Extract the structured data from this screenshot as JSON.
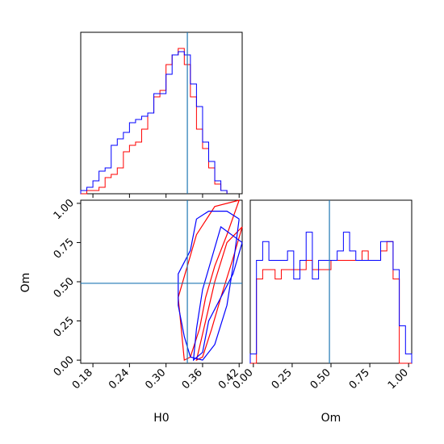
{
  "chart_data": {
    "type": "corner",
    "colors": {
      "series_a": "#0000ff",
      "series_b": "#ff0000",
      "truth": "#1f77b4"
    },
    "truth": {
      "H0": 0.335,
      "Om": 0.49
    },
    "xlabels": {
      "H0": "H0",
      "Om": "Om"
    },
    "ylabels": {
      "Om": "Om"
    },
    "ticks": {
      "H0": [
        "0.18",
        "0.24",
        "0.30",
        "0.36",
        "0.42"
      ],
      "Om_x": [
        "0.00",
        "0.25",
        "0.50",
        "0.75",
        "1.00"
      ],
      "Om_y": [
        "0.00",
        "0.25",
        "0.50",
        "0.75",
        "1.00"
      ]
    },
    "ranges": {
      "H0": [
        0.16,
        0.425
      ],
      "Om": [
        -0.02,
        1.02
      ]
    },
    "hist_H0": {
      "edges_start": 0.16,
      "bin_width": 0.01,
      "series_a": [
        1,
        2,
        4,
        7,
        8,
        15,
        17,
        19,
        22,
        23,
        24,
        25,
        31,
        31,
        37,
        43,
        44,
        43,
        34,
        27,
        16,
        10,
        4,
        1
      ],
      "series_b": [
        0,
        1,
        1,
        2,
        5,
        6,
        8,
        13,
        15,
        16,
        20,
        25,
        30,
        32,
        40,
        43,
        45,
        40,
        30,
        20,
        14,
        8,
        3,
        1
      ]
    },
    "hist_Om": {
      "edges_start": -0.02,
      "bin_width": 0.04,
      "series_a": [
        1,
        11,
        13,
        11,
        11,
        11,
        12,
        9,
        11,
        14,
        9,
        11,
        11,
        11,
        12,
        14,
        12,
        11,
        11,
        11,
        11,
        13,
        13,
        10,
        4,
        1
      ],
      "series_b": [
        0,
        9,
        10,
        10,
        9,
        10,
        10,
        10,
        10,
        11,
        10,
        10,
        10,
        11,
        11,
        11,
        11,
        11,
        12,
        11,
        11,
        12,
        13,
        9,
        0,
        0
      ]
    },
    "contours": {
      "series_a": [
        [
          [
            0.42,
            0.9
          ],
          [
            0.4,
            0.95
          ],
          [
            0.37,
            0.95
          ],
          [
            0.35,
            0.9
          ],
          [
            0.34,
            0.7
          ],
          [
            0.32,
            0.55
          ],
          [
            0.32,
            0.35
          ],
          [
            0.33,
            0.15
          ],
          [
            0.34,
            0.02
          ],
          [
            0.36,
            0.0
          ],
          [
            0.38,
            0.1
          ],
          [
            0.4,
            0.35
          ],
          [
            0.41,
            0.6
          ],
          [
            0.42,
            0.9
          ]
        ],
        [
          [
            0.425,
            0.75
          ],
          [
            0.41,
            0.55
          ],
          [
            0.39,
            0.4
          ],
          [
            0.37,
            0.25
          ],
          [
            0.36,
            0.05
          ],
          [
            0.345,
            0.0
          ],
          [
            0.35,
            0.2
          ],
          [
            0.36,
            0.45
          ],
          [
            0.375,
            0.65
          ],
          [
            0.39,
            0.85
          ],
          [
            0.425,
            0.75
          ]
        ]
      ],
      "series_b": [
        [
          [
            0.42,
            1.02
          ],
          [
            0.4,
            0.8
          ],
          [
            0.38,
            0.6
          ],
          [
            0.365,
            0.4
          ],
          [
            0.355,
            0.2
          ],
          [
            0.34,
            0.02
          ],
          [
            0.33,
            0.0
          ],
          [
            0.325,
            0.2
          ],
          [
            0.32,
            0.4
          ],
          [
            0.335,
            0.6
          ],
          [
            0.35,
            0.8
          ],
          [
            0.38,
            0.98
          ],
          [
            0.42,
            1.02
          ]
        ],
        [
          [
            0.425,
            0.85
          ],
          [
            0.41,
            0.65
          ],
          [
            0.39,
            0.4
          ],
          [
            0.375,
            0.2
          ],
          [
            0.36,
            0.02
          ],
          [
            0.35,
            0.0
          ],
          [
            0.365,
            0.25
          ],
          [
            0.38,
            0.5
          ],
          [
            0.4,
            0.75
          ],
          [
            0.425,
            0.85
          ]
        ]
      ]
    }
  }
}
